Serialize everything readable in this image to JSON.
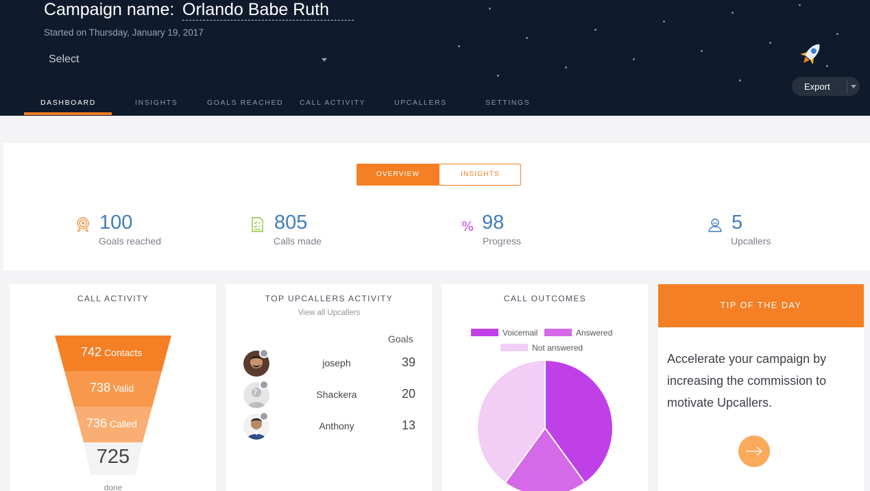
{
  "header": {
    "campaign_label": "Campaign name:",
    "campaign_name": "Orlando Babe Ruth",
    "started": "Started on Thursday, January 19, 2017",
    "select_placeholder": "Select",
    "export_label": "Export",
    "icons": {
      "rocket": "rocket-icon",
      "dropdown": "chevron-down-icon"
    }
  },
  "tabs": [
    {
      "label": "DASHBOARD",
      "active": true
    },
    {
      "label": "INSIGHTS",
      "active": false
    },
    {
      "label": "GOALS REACHED",
      "active": false
    },
    {
      "label": "CALL ACTIVITY",
      "active": false
    },
    {
      "label": "UPCALLERS",
      "active": false
    },
    {
      "label": "SETTINGS",
      "active": false
    }
  ],
  "overview": {
    "toggle": {
      "on": "OVERVIEW",
      "off": "INSIGHTS"
    },
    "stats": [
      {
        "value": "100",
        "label": "Goals reached",
        "icon": "target-icon"
      },
      {
        "value": "805",
        "label": "Calls made",
        "icon": "checklist-icon"
      },
      {
        "value": "98",
        "label": "Progress",
        "icon": "percent-icon"
      },
      {
        "value": "5",
        "label": "Upcallers",
        "icon": "user-icon"
      }
    ]
  },
  "call_activity": {
    "title": "CALL ACTIVITY",
    "funnel": [
      {
        "value": "742",
        "label": "Contacts"
      },
      {
        "value": "738",
        "label": "Valid"
      },
      {
        "value": "736",
        "label": "Called"
      }
    ],
    "done_value": "725",
    "done_label": "done"
  },
  "top_upcallers": {
    "title": "TOP UPCALLERS ACTIVITY",
    "link": "View all Upcallers",
    "goals_header": "Goals",
    "rows": [
      {
        "name": "joseph",
        "goals": "39"
      },
      {
        "name": "Shackera",
        "goals": "20"
      },
      {
        "name": "Anthony",
        "goals": "13"
      }
    ]
  },
  "call_outcomes": {
    "title": "CALL OUTCOMES",
    "legend": [
      {
        "label": "Voicemail",
        "color": "#c040e8"
      },
      {
        "label": "Answered",
        "color": "#d46ae8"
      },
      {
        "label": "Not answered",
        "color": "#f2cdf6"
      }
    ]
  },
  "chart_data": {
    "type": "pie",
    "categories": [
      "Voicemail",
      "Answered",
      "Not answered"
    ],
    "values": [
      40,
      20,
      40
    ],
    "colors": [
      "#c040e8",
      "#d46ae8",
      "#f2cdf6"
    ],
    "title": "CALL OUTCOMES",
    "legend_position": "top"
  },
  "tip": {
    "title": "TIP OF THE DAY",
    "body": "Accelerate your campaign by increasing the commission to motivate Upcallers.",
    "button_icon": "arrow-right-icon"
  },
  "colors": {
    "accent": "#f47f24",
    "header_bg": "#0f1a2c",
    "stat_number": "#3f7dbd"
  }
}
